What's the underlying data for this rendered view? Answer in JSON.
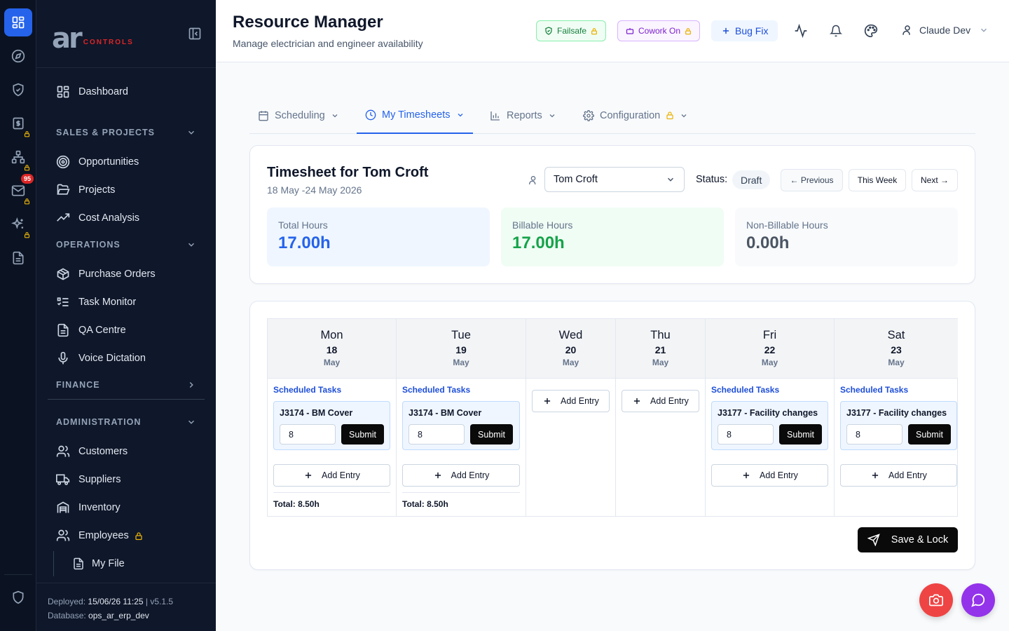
{
  "app": {
    "logo_ar": "ar",
    "logo_controls": "CONTROLS"
  },
  "rail": {
    "mail_badge": "95"
  },
  "sidebar": {
    "dashboard": "Dashboard",
    "sections": {
      "sales": "SALES & PROJECTS",
      "operations": "OPERATIONS",
      "finance": "FINANCE",
      "administration": "ADMINISTRATION"
    },
    "items": {
      "opportunities": "Opportunities",
      "projects": "Projects",
      "cost_analysis": "Cost Analysis",
      "purchase_orders": "Purchase Orders",
      "task_monitor": "Task Monitor",
      "qa_centre": "QA Centre",
      "voice_dictation": "Voice Dictation",
      "customers": "Customers",
      "suppliers": "Suppliers",
      "inventory": "Inventory",
      "employees": "Employees",
      "my_file": "My File"
    },
    "footer": {
      "deployed_label": "Deployed:",
      "deployed_value": "15/06/26 11:25",
      "separator": "|",
      "version": "v5.1.5",
      "database_label": "Database:",
      "database_value": "ops_ar_erp_dev"
    }
  },
  "header": {
    "title": "Resource Manager",
    "subtitle": "Manage electrician and engineer availability",
    "failsafe": "Failsafe",
    "cowork": "Cowork On",
    "bugfix": "Bug Fix",
    "user_name": "Claude Dev"
  },
  "tabs": {
    "scheduling": "Scheduling",
    "my_timesheets": "My Timesheets",
    "reports": "Reports",
    "configuration": "Configuration"
  },
  "timesheet": {
    "title": "Timesheet for Tom Croft",
    "range": "18 May -24 May 2026",
    "employee": "Tom Croft",
    "status_label": "Status:",
    "status": "Draft",
    "prev": "← Previous",
    "this_week": "This Week",
    "next": "Next →",
    "stats": {
      "total_label": "Total Hours",
      "total_value": "17.00h",
      "billable_label": "Billable Hours",
      "billable_value": "17.00h",
      "non_label": "Non-Billable Hours",
      "non_value": "0.00h"
    }
  },
  "days": [
    {
      "name": "Mon",
      "date": "18",
      "month": "May",
      "scheduled_label": "Scheduled Tasks",
      "task": "J3174 - BM Cover",
      "hours": "8",
      "submit": "Submit",
      "add": "Add Entry",
      "total": "Total: 8.50h"
    },
    {
      "name": "Tue",
      "date": "19",
      "month": "May",
      "scheduled_label": "Scheduled Tasks",
      "task": "J3174 - BM Cover",
      "hours": "8",
      "submit": "Submit",
      "add": "Add Entry",
      "total": "Total: 8.50h"
    },
    {
      "name": "Wed",
      "date": "20",
      "month": "May",
      "add": "Add Entry"
    },
    {
      "name": "Thu",
      "date": "21",
      "month": "May",
      "add": "Add Entry"
    },
    {
      "name": "Fri",
      "date": "22",
      "month": "May",
      "scheduled_label": "Scheduled Tasks",
      "task": "J3177 - Facility changes",
      "hours": "8",
      "submit": "Submit",
      "add": "Add Entry"
    },
    {
      "name": "Sat",
      "date": "23",
      "month": "May",
      "scheduled_label": "Scheduled Tasks",
      "task": "J3177 - Facility changes",
      "hours": "8",
      "submit": "Submit",
      "add": "Add Entry"
    }
  ],
  "actions": {
    "save_lock": "Save & Lock"
  },
  "colors": {
    "accent": "#2563eb",
    "sidebar_bg": "#0f172a",
    "rail_bg": "#0b1322",
    "billable": "#16a34a",
    "fab_camera": "#ef4444",
    "fab_chat": "#9333ea"
  }
}
